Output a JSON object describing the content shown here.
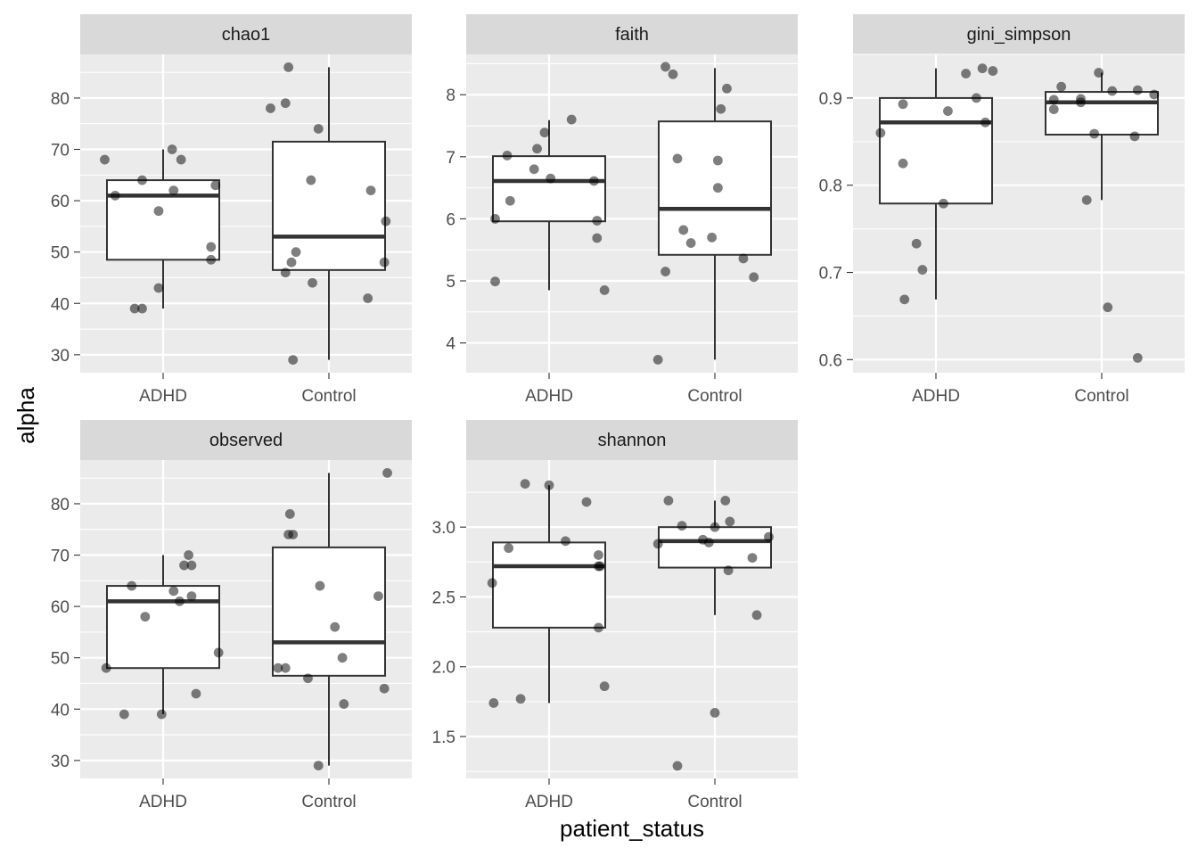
{
  "chart_data": {
    "type": "boxplot",
    "xlabel": "patient_status",
    "ylabel": "alpha",
    "categories": [
      "ADHD",
      "Control"
    ],
    "layout": "facet_wrap, 3 columns, free y scales",
    "grid": true,
    "colors": {
      "panel_bg": "#ebebeb",
      "strip_bg": "#d9d9d9",
      "grid": "#ffffff",
      "box_fill": "#ffffff",
      "box_line": "#333333",
      "point": "#000000"
    },
    "panels": [
      {
        "name": "chao1",
        "ylim": [
          26.5,
          88.5
        ],
        "yticks": [
          30,
          40,
          50,
          60,
          70,
          80
        ],
        "tick_labels": [
          "30",
          "40",
          "50",
          "60",
          "70",
          "80"
        ],
        "boxes": [
          {
            "category": "ADHD",
            "whisker_low": 39,
            "q1": 48.5,
            "median": 61,
            "q3": 64,
            "whisker_high": 70
          },
          {
            "category": "Control",
            "whisker_low": 29,
            "q1": 46.5,
            "median": 53,
            "q3": 71.5,
            "whisker_high": 86
          }
        ],
        "points": [
          {
            "category": "ADHD",
            "x": -0.39,
            "y": 68
          },
          {
            "category": "ADHD",
            "x": -0.32,
            "y": 61
          },
          {
            "category": "ADHD",
            "x": -0.19,
            "y": 39
          },
          {
            "category": "ADHD",
            "x": -0.14,
            "y": 39
          },
          {
            "category": "ADHD",
            "x": -0.14,
            "y": 64
          },
          {
            "category": "ADHD",
            "x": -0.03,
            "y": 43
          },
          {
            "category": "ADHD",
            "x": -0.03,
            "y": 58
          },
          {
            "category": "ADHD",
            "x": 0.07,
            "y": 62
          },
          {
            "category": "ADHD",
            "x": 0.06,
            "y": 70
          },
          {
            "category": "ADHD",
            "x": 0.12,
            "y": 68
          },
          {
            "category": "ADHD",
            "x": 0.32,
            "y": 51
          },
          {
            "category": "ADHD",
            "x": 0.32,
            "y": 48.5
          },
          {
            "category": "ADHD",
            "x": 0.35,
            "y": 63
          },
          {
            "category": "Control",
            "x": -0.39,
            "y": 78
          },
          {
            "category": "Control",
            "x": -0.29,
            "y": 79
          },
          {
            "category": "Control",
            "x": -0.27,
            "y": 86
          },
          {
            "category": "Control",
            "x": -0.29,
            "y": 46
          },
          {
            "category": "Control",
            "x": -0.25,
            "y": 48
          },
          {
            "category": "Control",
            "x": -0.22,
            "y": 50
          },
          {
            "category": "Control",
            "x": -0.24,
            "y": 29
          },
          {
            "category": "Control",
            "x": -0.12,
            "y": 64
          },
          {
            "category": "Control",
            "x": -0.07,
            "y": 74
          },
          {
            "category": "Control",
            "x": -0.11,
            "y": 44
          },
          {
            "category": "Control",
            "x": 0.28,
            "y": 62
          },
          {
            "category": "Control",
            "x": 0.26,
            "y": 41
          },
          {
            "category": "Control",
            "x": 0.38,
            "y": 56
          },
          {
            "category": "Control",
            "x": 0.37,
            "y": 48
          }
        ]
      },
      {
        "name": "faith",
        "ylim": [
          3.52,
          8.65
        ],
        "yticks": [
          4,
          5,
          6,
          7,
          8
        ],
        "tick_labels": [
          "4",
          "5",
          "6",
          "7",
          "8"
        ],
        "boxes": [
          {
            "category": "ADHD",
            "whisker_low": 4.85,
            "q1": 5.96,
            "median": 6.61,
            "q3": 7.01,
            "whisker_high": 7.59
          },
          {
            "category": "Control",
            "whisker_low": 3.73,
            "q1": 5.42,
            "median": 6.16,
            "q3": 7.57,
            "whisker_high": 8.43
          }
        ],
        "points": [
          {
            "category": "ADHD",
            "x": -0.36,
            "y": 6.0
          },
          {
            "category": "ADHD",
            "x": -0.36,
            "y": 4.99
          },
          {
            "category": "ADHD",
            "x": -0.28,
            "y": 7.02
          },
          {
            "category": "ADHD",
            "x": -0.26,
            "y": 6.29
          },
          {
            "category": "ADHD",
            "x": -0.1,
            "y": 6.8
          },
          {
            "category": "ADHD",
            "x": -0.08,
            "y": 7.13
          },
          {
            "category": "ADHD",
            "x": -0.03,
            "y": 7.39
          },
          {
            "category": "ADHD",
            "x": 0.01,
            "y": 6.65
          },
          {
            "category": "ADHD",
            "x": 0.15,
            "y": 7.6
          },
          {
            "category": "ADHD",
            "x": 0.3,
            "y": 6.61
          },
          {
            "category": "ADHD",
            "x": 0.32,
            "y": 5.97
          },
          {
            "category": "ADHD",
            "x": 0.32,
            "y": 5.69
          },
          {
            "category": "ADHD",
            "x": 0.37,
            "y": 4.85
          },
          {
            "category": "Control",
            "x": -0.38,
            "y": 3.73
          },
          {
            "category": "Control",
            "x": -0.33,
            "y": 8.45
          },
          {
            "category": "Control",
            "x": -0.28,
            "y": 8.33
          },
          {
            "category": "Control",
            "x": -0.25,
            "y": 6.97
          },
          {
            "category": "Control",
            "x": -0.21,
            "y": 5.82
          },
          {
            "category": "Control",
            "x": -0.33,
            "y": 5.15
          },
          {
            "category": "Control",
            "x": -0.16,
            "y": 5.61
          },
          {
            "category": "Control",
            "x": -0.02,
            "y": 5.7
          },
          {
            "category": "Control",
            "x": 0.02,
            "y": 6.94
          },
          {
            "category": "Control",
            "x": 0.02,
            "y": 6.5
          },
          {
            "category": "Control",
            "x": 0.04,
            "y": 7.77
          },
          {
            "category": "Control",
            "x": 0.08,
            "y": 8.1
          },
          {
            "category": "Control",
            "x": 0.19,
            "y": 5.36
          },
          {
            "category": "Control",
            "x": 0.26,
            "y": 5.06
          }
        ]
      },
      {
        "name": "gini_simpson",
        "ylim": [
          0.585,
          0.95
        ],
        "yticks": [
          0.6,
          0.7,
          0.8,
          0.9
        ],
        "tick_labels": [
          "0.6",
          "0.7",
          "0.8",
          "0.9"
        ],
        "boxes": [
          {
            "category": "ADHD",
            "whisker_low": 0.669,
            "q1": 0.779,
            "median": 0.872,
            "q3": 0.9,
            "whisker_high": 0.934
          },
          {
            "category": "Control",
            "whisker_low": 0.783,
            "q1": 0.858,
            "median": 0.895,
            "q3": 0.907,
            "whisker_high": 0.929
          }
        ],
        "points": [
          {
            "category": "ADHD",
            "x": -0.37,
            "y": 0.86
          },
          {
            "category": "ADHD",
            "x": -0.22,
            "y": 0.825
          },
          {
            "category": "ADHD",
            "x": -0.22,
            "y": 0.893
          },
          {
            "category": "ADHD",
            "x": -0.21,
            "y": 0.669
          },
          {
            "category": "ADHD",
            "x": -0.13,
            "y": 0.733
          },
          {
            "category": "ADHD",
            "x": -0.09,
            "y": 0.703
          },
          {
            "category": "ADHD",
            "x": 0.05,
            "y": 0.779
          },
          {
            "category": "ADHD",
            "x": 0.08,
            "y": 0.885
          },
          {
            "category": "ADHD",
            "x": 0.2,
            "y": 0.928
          },
          {
            "category": "ADHD",
            "x": 0.27,
            "y": 0.9
          },
          {
            "category": "ADHD",
            "x": 0.31,
            "y": 0.934
          },
          {
            "category": "ADHD",
            "x": 0.33,
            "y": 0.872
          },
          {
            "category": "ADHD",
            "x": 0.38,
            "y": 0.931
          },
          {
            "category": "Control",
            "x": -0.32,
            "y": 0.898
          },
          {
            "category": "Control",
            "x": -0.32,
            "y": 0.887
          },
          {
            "category": "Control",
            "x": -0.27,
            "y": 0.913
          },
          {
            "category": "Control",
            "x": -0.14,
            "y": 0.899
          },
          {
            "category": "Control",
            "x": -0.14,
            "y": 0.895
          },
          {
            "category": "Control",
            "x": -0.1,
            "y": 0.783
          },
          {
            "category": "Control",
            "x": -0.05,
            "y": 0.859
          },
          {
            "category": "Control",
            "x": -0.02,
            "y": 0.929
          },
          {
            "category": "Control",
            "x": 0.07,
            "y": 0.908
          },
          {
            "category": "Control",
            "x": 0.04,
            "y": 0.66
          },
          {
            "category": "Control",
            "x": 0.22,
            "y": 0.856
          },
          {
            "category": "Control",
            "x": 0.24,
            "y": 0.909
          },
          {
            "category": "Control",
            "x": 0.35,
            "y": 0.904
          },
          {
            "category": "Control",
            "x": 0.24,
            "y": 0.602
          }
        ]
      },
      {
        "name": "observed",
        "ylim": [
          26.5,
          88.5
        ],
        "yticks": [
          30,
          40,
          50,
          60,
          70,
          80
        ],
        "tick_labels": [
          "30",
          "40",
          "50",
          "60",
          "70",
          "80"
        ],
        "boxes": [
          {
            "category": "ADHD",
            "whisker_low": 39,
            "q1": 48,
            "median": 61,
            "q3": 64,
            "whisker_high": 70
          },
          {
            "category": "Control",
            "whisker_low": 29,
            "q1": 46.5,
            "median": 53,
            "q3": 71.5,
            "whisker_high": 86
          }
        ],
        "points": [
          {
            "category": "ADHD",
            "x": -0.38,
            "y": 48
          },
          {
            "category": "ADHD",
            "x": -0.26,
            "y": 39
          },
          {
            "category": "ADHD",
            "x": -0.21,
            "y": 64
          },
          {
            "category": "ADHD",
            "x": -0.12,
            "y": 58
          },
          {
            "category": "ADHD",
            "x": -0.01,
            "y": 39
          },
          {
            "category": "ADHD",
            "x": 0.07,
            "y": 63
          },
          {
            "category": "ADHD",
            "x": 0.11,
            "y": 61
          },
          {
            "category": "ADHD",
            "x": 0.14,
            "y": 68
          },
          {
            "category": "ADHD",
            "x": 0.17,
            "y": 70
          },
          {
            "category": "ADHD",
            "x": 0.19,
            "y": 68
          },
          {
            "category": "ADHD",
            "x": 0.19,
            "y": 62
          },
          {
            "category": "ADHD",
            "x": 0.22,
            "y": 43
          },
          {
            "category": "ADHD",
            "x": 0.37,
            "y": 51
          },
          {
            "category": "Control",
            "x": -0.34,
            "y": 48
          },
          {
            "category": "Control",
            "x": -0.29,
            "y": 48
          },
          {
            "category": "Control",
            "x": -0.26,
            "y": 78
          },
          {
            "category": "Control",
            "x": -0.27,
            "y": 74
          },
          {
            "category": "Control",
            "x": -0.24,
            "y": 74
          },
          {
            "category": "Control",
            "x": -0.14,
            "y": 46
          },
          {
            "category": "Control",
            "x": -0.06,
            "y": 64
          },
          {
            "category": "Control",
            "x": -0.07,
            "y": 29
          },
          {
            "category": "Control",
            "x": 0.04,
            "y": 56
          },
          {
            "category": "Control",
            "x": 0.09,
            "y": 50
          },
          {
            "category": "Control",
            "x": 0.1,
            "y": 41
          },
          {
            "category": "Control",
            "x": 0.33,
            "y": 62
          },
          {
            "category": "Control",
            "x": 0.37,
            "y": 44
          },
          {
            "category": "Control",
            "x": 0.39,
            "y": 86
          }
        ]
      },
      {
        "name": "shannon",
        "ylim": [
          1.2,
          3.48
        ],
        "yticks": [
          1.5,
          2.0,
          2.5,
          3.0
        ],
        "tick_labels": [
          "1.5",
          "2.0",
          "2.5",
          "3.0"
        ],
        "boxes": [
          {
            "category": "ADHD",
            "whisker_low": 1.74,
            "q1": 2.28,
            "median": 2.72,
            "q3": 2.89,
            "whisker_high": 3.3
          },
          {
            "category": "Control",
            "whisker_low": 2.37,
            "q1": 2.71,
            "median": 2.9,
            "q3": 3.0,
            "whisker_high": 3.19
          }
        ],
        "points": [
          {
            "category": "ADHD",
            "x": -0.38,
            "y": 2.6
          },
          {
            "category": "ADHD",
            "x": -0.37,
            "y": 1.74
          },
          {
            "category": "ADHD",
            "x": -0.27,
            "y": 2.85
          },
          {
            "category": "ADHD",
            "x": -0.19,
            "y": 1.77
          },
          {
            "category": "ADHD",
            "x": -0.16,
            "y": 3.31
          },
          {
            "category": "ADHD",
            "x": 0.0,
            "y": 3.3
          },
          {
            "category": "ADHD",
            "x": 0.11,
            "y": 2.9
          },
          {
            "category": "ADHD",
            "x": 0.25,
            "y": 3.18
          },
          {
            "category": "ADHD",
            "x": 0.33,
            "y": 2.8
          },
          {
            "category": "ADHD",
            "x": 0.33,
            "y": 2.72
          },
          {
            "category": "ADHD",
            "x": 0.33,
            "y": 2.28
          },
          {
            "category": "ADHD",
            "x": 0.34,
            "y": 2.72
          },
          {
            "category": "ADHD",
            "x": 0.37,
            "y": 1.86
          },
          {
            "category": "Control",
            "x": -0.38,
            "y": 2.88
          },
          {
            "category": "Control",
            "x": -0.31,
            "y": 3.19
          },
          {
            "category": "Control",
            "x": -0.22,
            "y": 3.01
          },
          {
            "category": "Control",
            "x": -0.25,
            "y": 1.29
          },
          {
            "category": "Control",
            "x": -0.08,
            "y": 2.91
          },
          {
            "category": "Control",
            "x": -0.04,
            "y": 2.89
          },
          {
            "category": "Control",
            "x": 0.0,
            "y": 3.0
          },
          {
            "category": "Control",
            "x": 0.0,
            "y": 1.67
          },
          {
            "category": "Control",
            "x": 0.07,
            "y": 3.19
          },
          {
            "category": "Control",
            "x": 0.09,
            "y": 2.69
          },
          {
            "category": "Control",
            "x": 0.1,
            "y": 3.04
          },
          {
            "category": "Control",
            "x": 0.25,
            "y": 2.78
          },
          {
            "category": "Control",
            "x": 0.28,
            "y": 2.37
          },
          {
            "category": "Control",
            "x": 0.36,
            "y": 2.93
          }
        ]
      }
    ]
  }
}
